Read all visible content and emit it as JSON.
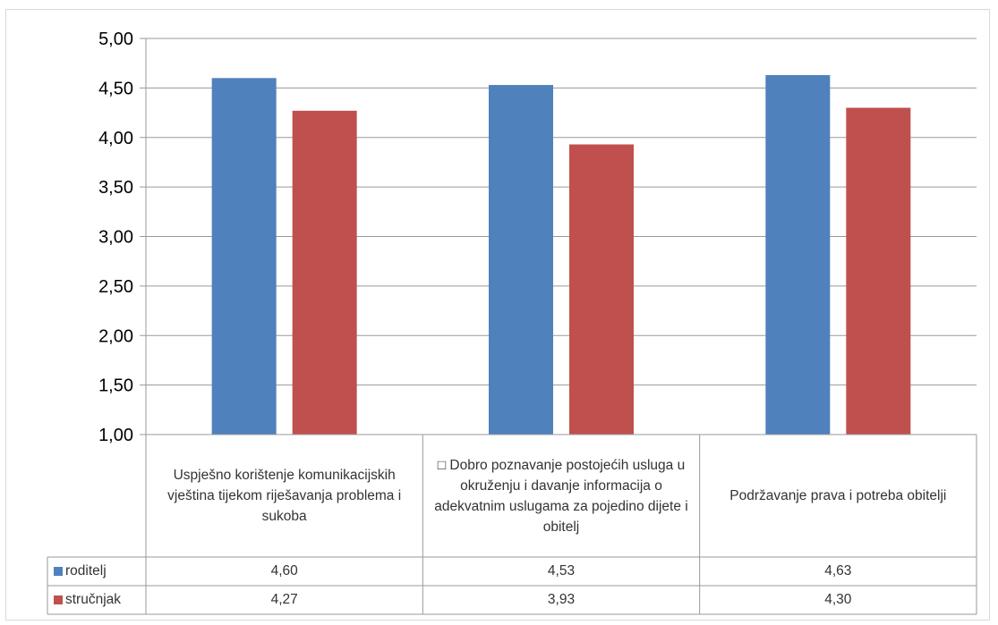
{
  "chart_data": {
    "type": "bar",
    "categories": [
      "Uspješno korištenje komunikacijskih vještina tijekom riješavanja problema i sukoba",
      "□ Dobro poznavanje postojećih usluga u okruženju i davanje informacija o adekvatnim uslugama za pojedino dijete i obitelj",
      "Podržavanje prava i potreba obitelji"
    ],
    "series": [
      {
        "name": "roditelj",
        "color": "#4f81bd",
        "values": [
          4.6,
          4.53,
          4.63
        ],
        "labels": [
          "4,60",
          "4,53",
          "4,63"
        ]
      },
      {
        "name": "stručnjak",
        "color": "#c0504d",
        "values": [
          4.27,
          3.93,
          4.3
        ],
        "labels": [
          "4,27",
          "3,93",
          "4,30"
        ]
      }
    ],
    "ylim": [
      1.0,
      5.0
    ],
    "yticks": [
      "1,00",
      "1,50",
      "2,00",
      "2,50",
      "3,00",
      "3,50",
      "4,00",
      "4,50",
      "5,00"
    ],
    "grid": true,
    "legend": "data table"
  }
}
